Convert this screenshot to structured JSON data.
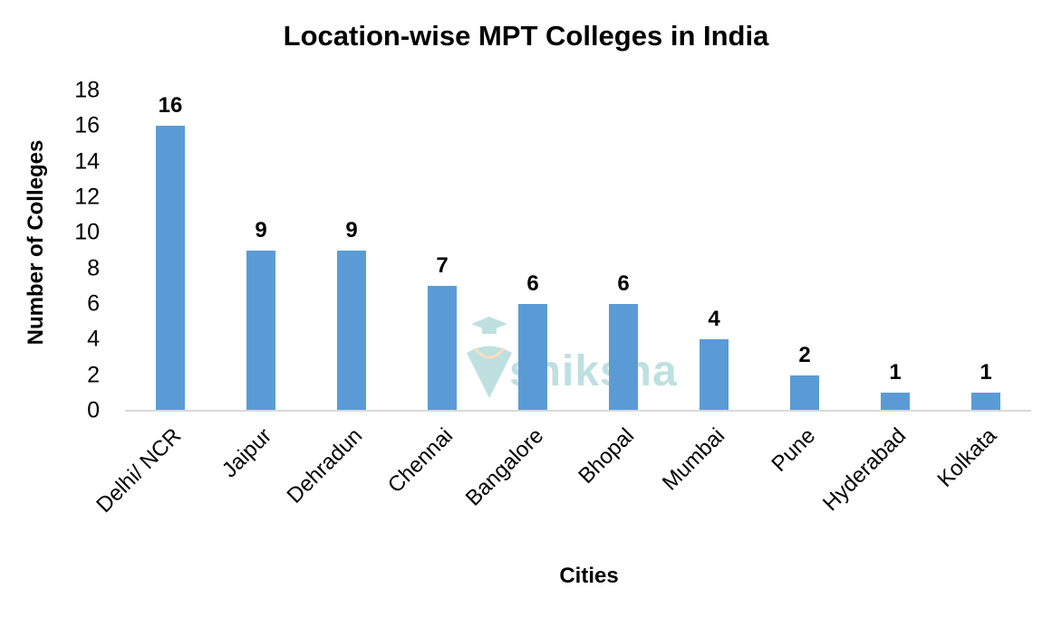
{
  "chart_data": {
    "type": "bar",
    "title": "Location-wise MPT Colleges in India",
    "xlabel": "Cities",
    "ylabel": "Number of Colleges",
    "categories": [
      "Delhi/ NCR",
      "Jaipur",
      "Dehradun",
      "Chennai",
      "Bangalore",
      "Bhopal",
      "Mumbai",
      "Pune",
      "Hyderabad",
      "Kolkata"
    ],
    "values": [
      16,
      9,
      9,
      7,
      6,
      6,
      4,
      2,
      1,
      1
    ],
    "ylim": [
      0,
      18
    ],
    "yticks": [
      0,
      2,
      4,
      6,
      8,
      10,
      12,
      14,
      16,
      18
    ],
    "grid": false,
    "legend": null,
    "data_labels": true,
    "bar_color": "#5b9bd5"
  },
  "watermark": {
    "text": "shiksha"
  }
}
